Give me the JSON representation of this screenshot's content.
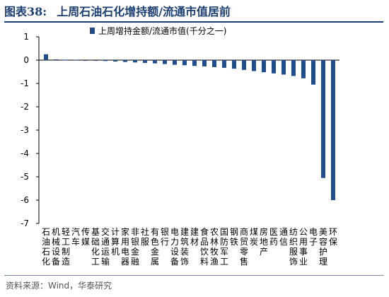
{
  "figure": {
    "label": "图表38:",
    "title": "上周石油石化增持额/流通市值居前",
    "source": "资料来源：Wind，华泰研究"
  },
  "chart_data": {
    "type": "bar",
    "series": [
      {
        "name": "上周增持金额/流通市值(千分之一)",
        "color": "#1f4e8c",
        "values": [
          0.25,
          0.03,
          0.02,
          0.01,
          0.0,
          -0.02,
          -0.04,
          -0.06,
          -0.08,
          -0.1,
          -0.12,
          -0.14,
          -0.17,
          -0.2,
          -0.22,
          -0.25,
          -0.27,
          -0.3,
          -0.33,
          -0.37,
          -0.42,
          -0.47,
          -0.52,
          -0.57,
          -0.62,
          -0.68,
          -0.78,
          -1.05,
          -5.05,
          -6.0
        ]
      }
    ],
    "categories": [
      "石油石化",
      "机械设备",
      "轻工制造",
      "汽车",
      "传媒",
      "基础化工",
      "交通运输",
      "计算机",
      "家用电器",
      "非银金融",
      "社服",
      "有色金属",
      "银行",
      "电力设备",
      "建筑装饰",
      "建材",
      "食品饮料",
      "农林牧渔",
      "国防军工",
      "钢铁",
      "商贸零售",
      "煤炭",
      "房地产",
      "医药",
      "通信",
      "纺织服饰",
      "公用事业",
      "电子",
      "美容护理",
      "环保"
    ],
    "yticks": [
      "-7",
      "-6",
      "-5",
      "-4",
      "-3",
      "-2",
      "-1",
      "0",
      "1"
    ],
    "ylim": [
      -7,
      1
    ],
    "legend_position": "top-center",
    "grid": false
  }
}
